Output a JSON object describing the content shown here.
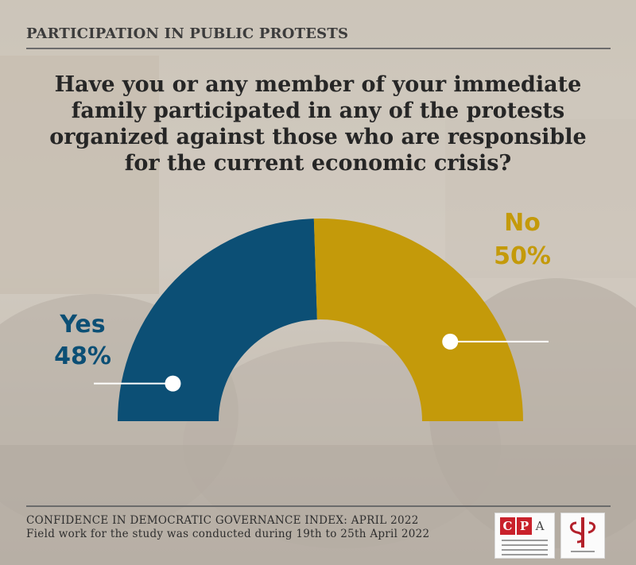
{
  "header": {
    "title": "PARTICIPATION IN PUBLIC PROTESTS"
  },
  "question": {
    "lines": [
      "Have you or any member of your immediate",
      "family participated in any of the protests",
      "organized against those who are responsible",
      "for the current economic crisis?"
    ]
  },
  "chart_data": {
    "type": "pie",
    "variant": "half-donut",
    "categories": [
      "Yes",
      "No"
    ],
    "values": [
      48,
      50
    ],
    "value_labels": [
      "48%",
      "50%"
    ],
    "colors": [
      "#0c4f75",
      "#c49a0a"
    ],
    "title": "",
    "legend": "none"
  },
  "footer": {
    "line1": "CONFIDENCE IN DEMOCRATIC GOVERNANCE INDEX: APRIL 2022",
    "line2": "Field work for the study was conducted during 19th to 25th April 2022"
  },
  "logos": {
    "cpa": {
      "letters": [
        "C",
        "P",
        "A"
      ]
    }
  }
}
